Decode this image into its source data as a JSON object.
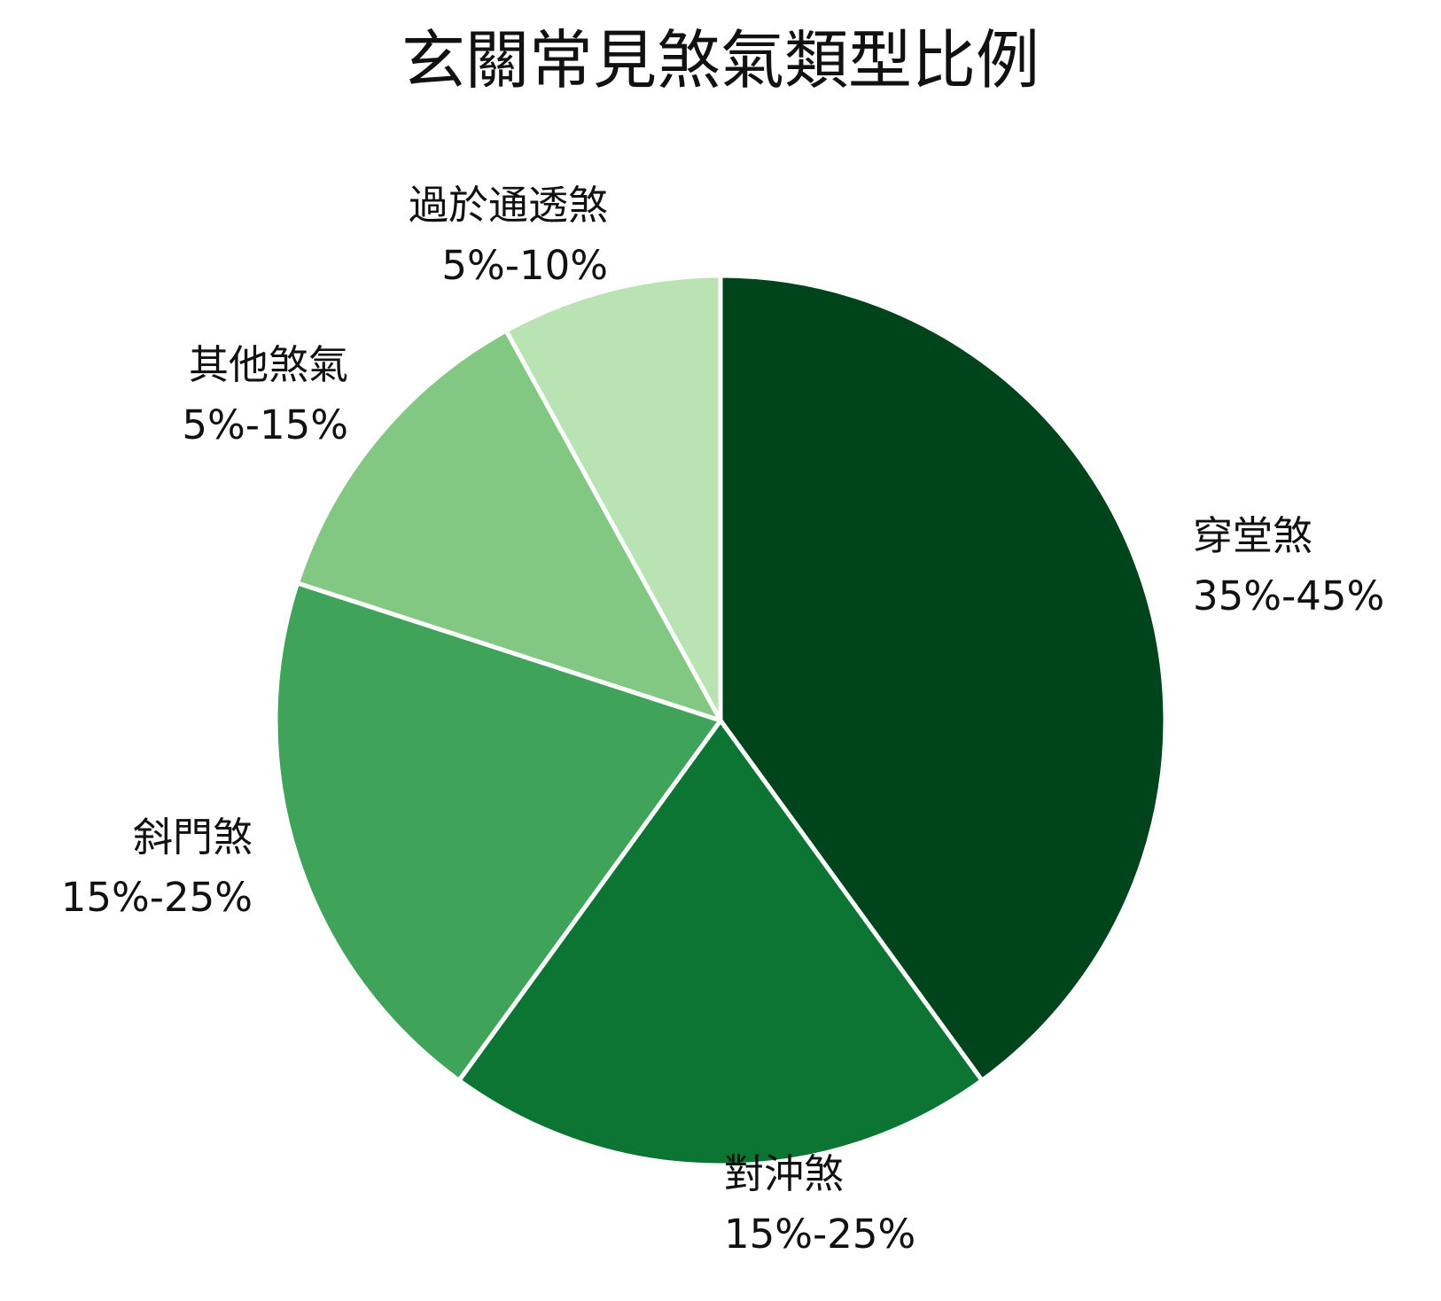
{
  "chart_data": {
    "type": "pie",
    "title": "玄關常見煞氣類型比例",
    "slices": [
      {
        "name": "穿堂煞",
        "range_label": "35%-45%",
        "value": 40,
        "color": "#00441b"
      },
      {
        "name": "對沖煞",
        "range_label": "15%-25%",
        "value": 20,
        "color": "#0d7534"
      },
      {
        "name": "斜門煞",
        "range_label": "15%-25%",
        "value": 20,
        "color": "#3fa35a"
      },
      {
        "name": "其他煞氣",
        "range_label": "5%-15%",
        "value": 12,
        "color": "#82c782"
      },
      {
        "name": "過於通透煞",
        "range_label": "5%-10%",
        "value": 8,
        "color": "#bae3b3"
      }
    ],
    "start_angle": "12 o'clock",
    "direction": "clockwise",
    "legend": "none",
    "slice_border_color": "#ffffff"
  }
}
